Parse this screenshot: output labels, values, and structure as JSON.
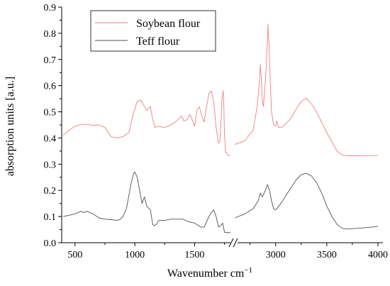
{
  "chart_data": {
    "type": "line",
    "title": "",
    "xlabel": "Wavenumber cm",
    "xlabel_superscript": "−1",
    "ylabel": "absorption units [a.u.]",
    "ylim": [
      0.0,
      0.9
    ],
    "yticks": [
      0.0,
      0.1,
      0.2,
      0.3,
      0.4,
      0.5,
      0.6,
      0.7,
      0.8,
      0.9
    ],
    "ytick_labels": [
      "0.0",
      "0.1",
      "0.2",
      "0.3",
      "0.4",
      "0.5",
      "0.6",
      "0.7",
      "0.8",
      "0.9"
    ],
    "grid": false,
    "legend_position": "top-left",
    "x_axis_break": true,
    "segments": [
      {
        "xlim": [
          400,
          1800
        ],
        "ticks": [
          500,
          1000,
          1500
        ],
        "tick_labels": [
          "500",
          "1000",
          "1500"
        ]
      },
      {
        "xlim": [
          2600,
          4000
        ],
        "ticks": [
          3000,
          3500,
          4000
        ],
        "tick_labels": [
          "3000",
          "3500",
          "4000"
        ]
      }
    ],
    "series": [
      {
        "name": "Soybean flour",
        "color": "#f08080",
        "segments": [
          {
            "x": [
              400,
              450,
              500,
              550,
              600,
              650,
              700,
              750,
              800,
              850,
              900,
              950,
              980,
              1000,
              1020,
              1050,
              1080,
              1100,
              1130,
              1150,
              1170,
              1200,
              1240,
              1280,
              1320,
              1360,
              1390,
              1410,
              1440,
              1460,
              1480,
              1500,
              1520,
              1540,
              1560,
              1580,
              1600,
              1620,
              1640,
              1660,
              1680,
              1700,
              1710,
              1720,
              1730,
              1740,
              1745,
              1750,
              1760,
              1780,
              1800
            ],
            "y": [
              0.41,
              0.43,
              0.445,
              0.452,
              0.452,
              0.448,
              0.45,
              0.44,
              0.405,
              0.4,
              0.405,
              0.42,
              0.48,
              0.51,
              0.54,
              0.545,
              0.52,
              0.505,
              0.52,
              0.47,
              0.44,
              0.445,
              0.44,
              0.445,
              0.455,
              0.47,
              0.485,
              0.465,
              0.47,
              0.49,
              0.47,
              0.445,
              0.505,
              0.52,
              0.485,
              0.46,
              0.52,
              0.57,
              0.58,
              0.54,
              0.44,
              0.38,
              0.385,
              0.45,
              0.555,
              0.58,
              0.52,
              0.41,
              0.345,
              0.335,
              0.333
            ]
          },
          {
            "x": [
              2600,
              2700,
              2780,
              2820,
              2840,
              2850,
              2860,
              2870,
              2880,
              2900,
              2920,
              2925,
              2935,
              2945,
              2960,
              2980,
              3000,
              3010,
              3030,
              3060,
              3100,
              3150,
              3200,
              3250,
              3300,
              3350,
              3400,
              3450,
              3500,
              3550,
              3600,
              3650,
              3700,
              3800,
              3900,
              4000
            ],
            "y": [
              0.375,
              0.39,
              0.43,
              0.52,
              0.61,
              0.68,
              0.63,
              0.54,
              0.52,
              0.62,
              0.77,
              0.835,
              0.76,
              0.64,
              0.5,
              0.45,
              0.445,
              0.465,
              0.44,
              0.44,
              0.455,
              0.475,
              0.51,
              0.54,
              0.552,
              0.53,
              0.5,
              0.46,
              0.42,
              0.385,
              0.35,
              0.335,
              0.332,
              0.332,
              0.333,
              0.333
            ]
          }
        ]
      },
      {
        "name": "Teff flour",
        "color": "#505050",
        "segments": [
          {
            "x": [
              400,
              450,
              500,
              550,
              570,
              600,
              650,
              700,
              750,
              800,
              850,
              880,
              900,
              930,
              950,
              970,
              990,
              1000,
              1020,
              1040,
              1060,
              1080,
              1100,
              1130,
              1150,
              1160,
              1180,
              1200,
              1250,
              1300,
              1350,
              1400,
              1450,
              1500,
              1550,
              1580,
              1600,
              1620,
              1640,
              1660,
              1680,
              1700,
              1720,
              1735,
              1750,
              1780,
              1800
            ],
            "y": [
              0.1,
              0.105,
              0.11,
              0.12,
              0.115,
              0.12,
              0.11,
              0.095,
              0.09,
              0.088,
              0.085,
              0.09,
              0.1,
              0.13,
              0.18,
              0.23,
              0.265,
              0.27,
              0.25,
              0.2,
              0.15,
              0.175,
              0.14,
              0.125,
              0.07,
              0.065,
              0.07,
              0.085,
              0.085,
              0.09,
              0.09,
              0.09,
              0.08,
              0.075,
              0.06,
              0.06,
              0.08,
              0.1,
              0.115,
              0.125,
              0.1,
              0.06,
              0.065,
              0.075,
              0.04,
              0.038,
              0.04
            ]
          },
          {
            "x": [
              2600,
              2700,
              2780,
              2830,
              2850,
              2870,
              2900,
              2920,
              2940,
              2960,
              2980,
              3000,
              3020,
              3060,
              3100,
              3150,
              3200,
              3250,
              3300,
              3350,
              3400,
              3450,
              3500,
              3550,
              3600,
              3650,
              3700,
              3800,
              3900,
              4000
            ],
            "y": [
              0.095,
              0.11,
              0.13,
              0.16,
              0.19,
              0.175,
              0.2,
              0.222,
              0.2,
              0.16,
              0.13,
              0.125,
              0.135,
              0.155,
              0.18,
              0.21,
              0.24,
              0.26,
              0.265,
              0.255,
              0.23,
              0.19,
              0.14,
              0.1,
              0.07,
              0.055,
              0.052,
              0.055,
              0.058,
              0.062
            ]
          }
        ]
      }
    ]
  }
}
